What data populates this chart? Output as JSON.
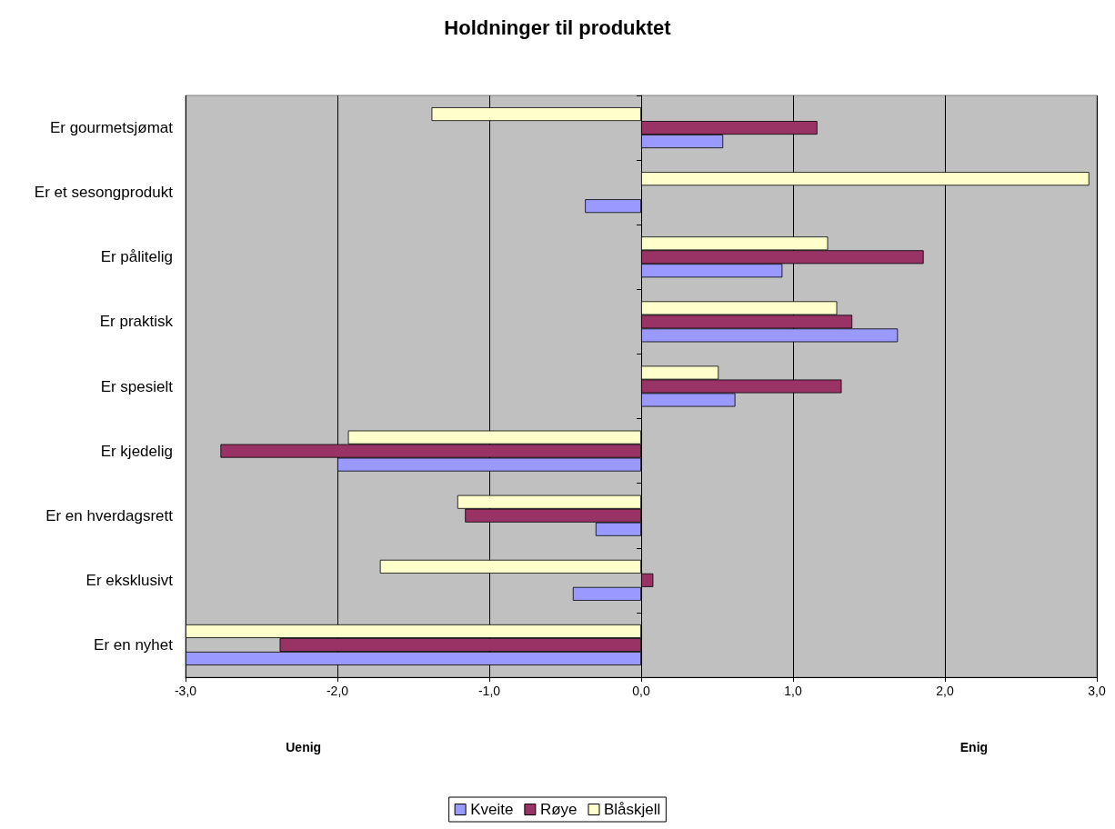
{
  "chart_data": {
    "type": "bar",
    "orientation": "horizontal",
    "title": "Holdninger til produktet",
    "categories": [
      "Er gourmetsjømat",
      "Er et sesongprodukt",
      "Er pålitelig",
      "Er praktisk",
      "Er spesielt",
      "Er kjedelig",
      "Er en hverdagsrett",
      "Er eksklusivt",
      "Er en nyhet"
    ],
    "series": [
      {
        "name": "Kveite",
        "color": "#9999ff",
        "values": [
          0.54,
          -0.37,
          0.93,
          1.69,
          0.62,
          -2.0,
          -0.3,
          -0.45,
          -3.0
        ]
      },
      {
        "name": "Røye",
        "color": "#993366",
        "values": [
          1.16,
          null,
          1.86,
          1.39,
          1.32,
          -2.77,
          -1.16,
          0.08,
          -2.38
        ]
      },
      {
        "name": "Blåskjell",
        "color": "#ffffcc",
        "values": [
          -1.38,
          2.95,
          1.23,
          1.29,
          0.51,
          -1.93,
          -1.21,
          -1.72,
          -3.0
        ]
      }
    ],
    "xlim": [
      -3,
      3
    ],
    "xticks": [
      {
        "value": -3,
        "label": "-3,0"
      },
      {
        "value": -2,
        "label": "-2,0"
      },
      {
        "value": -1,
        "label": "-1,0"
      },
      {
        "value": 0,
        "label": "0,0"
      },
      {
        "value": 1,
        "label": "1,0"
      },
      {
        "value": 2,
        "label": "2,0"
      },
      {
        "value": 3,
        "label": "3,0"
      }
    ],
    "annotations": [
      "Uenig",
      "Enig"
    ],
    "grid": "x",
    "legend": "bottom"
  }
}
